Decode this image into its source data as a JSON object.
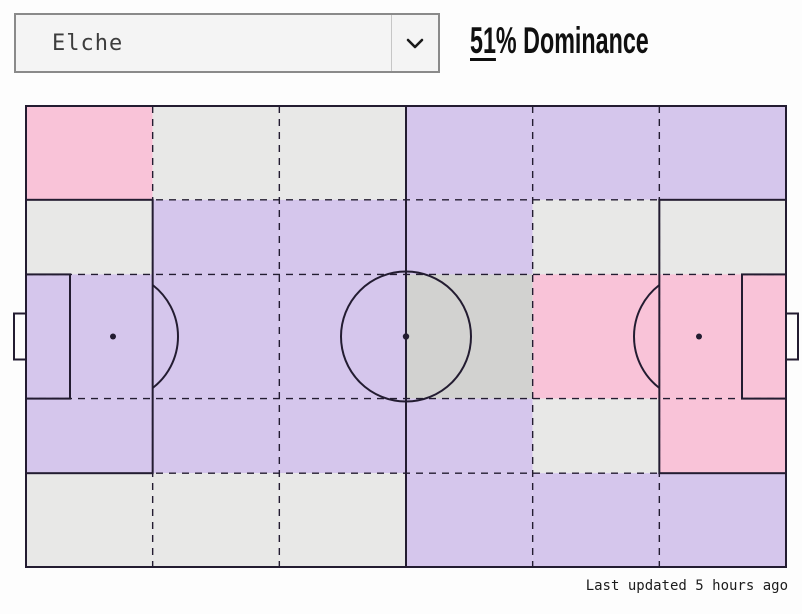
{
  "header": {
    "team_selector": {
      "value": "Elche",
      "chevron_icon": "chevron-down"
    },
    "dominance": {
      "value": "51",
      "suffix": "% Dominance",
      "full_text": "51% Dominance"
    }
  },
  "footer": {
    "last_updated": "Last updated 5 hours ago"
  },
  "chart_data": {
    "type": "heatmap",
    "title": "51% Dominance",
    "team": "Elche",
    "dominance_percent": 51,
    "grid": {
      "cols": 6,
      "rows": 5
    },
    "row_fractions": [
      0.2035,
      0.1618,
      0.2694,
      0.1618,
      0.2035
    ],
    "zones": [
      [
        "pink",
        "gray",
        "gray",
        "purple",
        "purple",
        "purple"
      ],
      [
        "gray",
        "purple",
        "purple",
        "purple",
        "gray",
        "gray"
      ],
      [
        "purple",
        "purple",
        "purple",
        "gray_dark",
        "pink",
        "pink"
      ],
      [
        "purple",
        "purple",
        "purple",
        "purple",
        "gray",
        "pink"
      ],
      [
        "gray",
        "gray",
        "gray",
        "purple",
        "purple",
        "purple"
      ]
    ],
    "colors": {
      "purple": "#d5c6ec",
      "pink": "#f9c3d8",
      "gray": "#e8e8e7",
      "gray_dark": "#d2d2d0",
      "line": "#231c31"
    },
    "legend_position": "none",
    "grid_lines": "dashed",
    "pitch_markings": "solid"
  }
}
